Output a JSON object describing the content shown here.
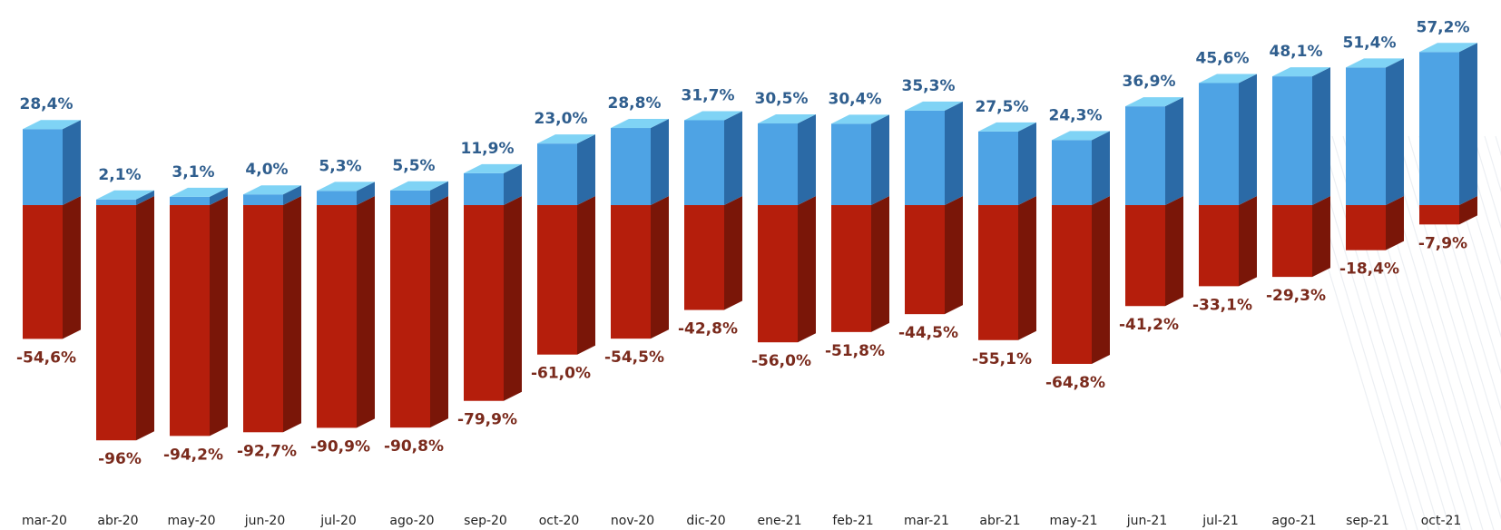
{
  "colors": {
    "positive_front": "#4ea3e4",
    "positive_top": "#7fd3f5",
    "positive_side": "#2b6aa6",
    "negative_front": "#b51e0c",
    "negative_top": "#d8301a",
    "negative_side": "#7a1608",
    "positive_label": "#2f5e8e",
    "negative_label": "#7a2a1c",
    "category_label": "#222222"
  },
  "chart_data": {
    "type": "bar",
    "categories": [
      "mar-20",
      "abr-20",
      "may-20",
      "jun-20",
      "jul-20",
      "ago-20",
      "sep-20",
      "oct-20",
      "nov-20",
      "dic-20",
      "ene-21",
      "feb-21",
      "mar-21",
      "abr-21",
      "may-21",
      "jun-21",
      "jul-21",
      "ago-21",
      "sep-21",
      "oct-21"
    ],
    "series": [
      {
        "values": [
          28.4,
          2.1,
          3.1,
          4.0,
          5.3,
          5.5,
          11.9,
          23.0,
          28.8,
          31.7,
          30.5,
          30.4,
          35.3,
          27.5,
          24.3,
          36.9,
          45.6,
          48.1,
          51.4,
          57.2
        ],
        "labels": [
          "28,4%",
          "2,1%",
          "3,1%",
          "4,0%",
          "5,3%",
          "5,5%",
          "11,9%",
          "23,0%",
          "28,8%",
          "31,7%",
          "30,5%",
          "30,4%",
          "35,3%",
          "27,5%",
          "24,3%",
          "36,9%",
          "45,6%",
          "48,1%",
          "51,4%",
          "57,2%"
        ]
      },
      {
        "values": [
          -54.6,
          -96,
          -94.2,
          -92.7,
          -90.9,
          -90.8,
          -79.9,
          -61.0,
          -54.5,
          -42.8,
          -56.0,
          -51.8,
          -44.5,
          -55.1,
          -64.8,
          -41.2,
          -33.1,
          -29.3,
          -18.4,
          -7.9
        ],
        "labels": [
          "-54,6%",
          "-96%",
          "-94,2%",
          "-92,7%",
          "-90,9%",
          "-90,8%",
          "-79,9%",
          "-61,0%",
          "-54,5%",
          "-42,8%",
          "-56,0%",
          "-51,8%",
          "-44,5%",
          "-55,1%",
          "-64,8%",
          "-41,2%",
          "-33,1%",
          "-29,3%",
          "-18,4%",
          "-7,9%"
        ]
      }
    ],
    "style": "3d-stacked-columns",
    "grid": false,
    "legend": "none"
  }
}
